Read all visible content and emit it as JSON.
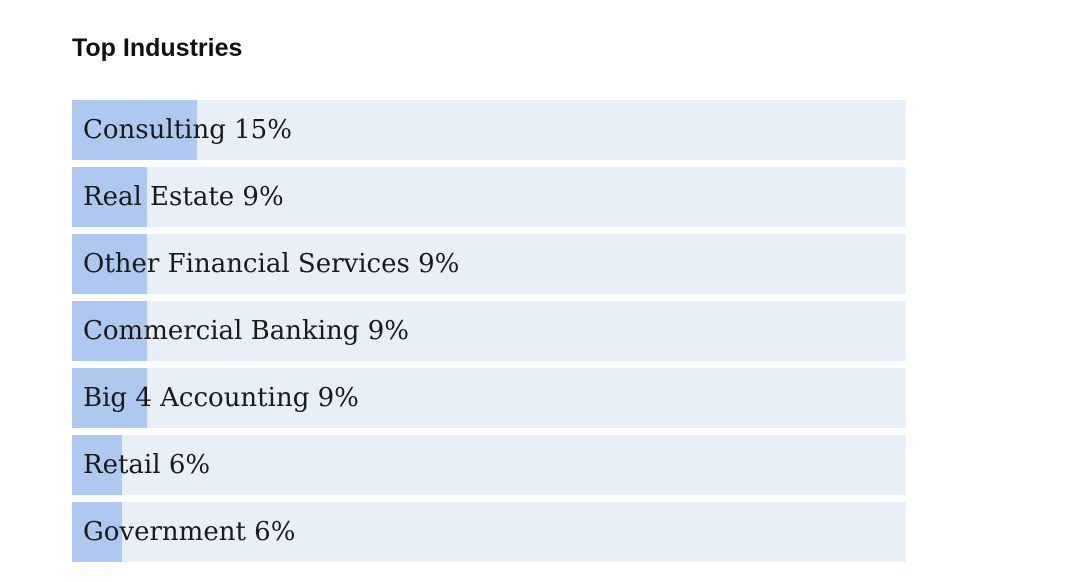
{
  "title": "Top Industries",
  "colors": {
    "track": "#e8eff9",
    "fill": "#afc8ef",
    "text": "#1a1a1a"
  },
  "chart_data": {
    "type": "bar",
    "orientation": "horizontal",
    "title": "Top Industries",
    "categories": [
      "Consulting",
      "Real Estate",
      "Other Financial Services",
      "Commercial Banking",
      "Big 4 Accounting",
      "Retail",
      "Government"
    ],
    "values": [
      15,
      9,
      9,
      9,
      9,
      6,
      6
    ],
    "value_labels": [
      "15%",
      "9%",
      "9%",
      "9%",
      "9%",
      "6%",
      "6%"
    ],
    "unit": "%",
    "xlim": [
      0,
      100
    ],
    "grid": false
  }
}
